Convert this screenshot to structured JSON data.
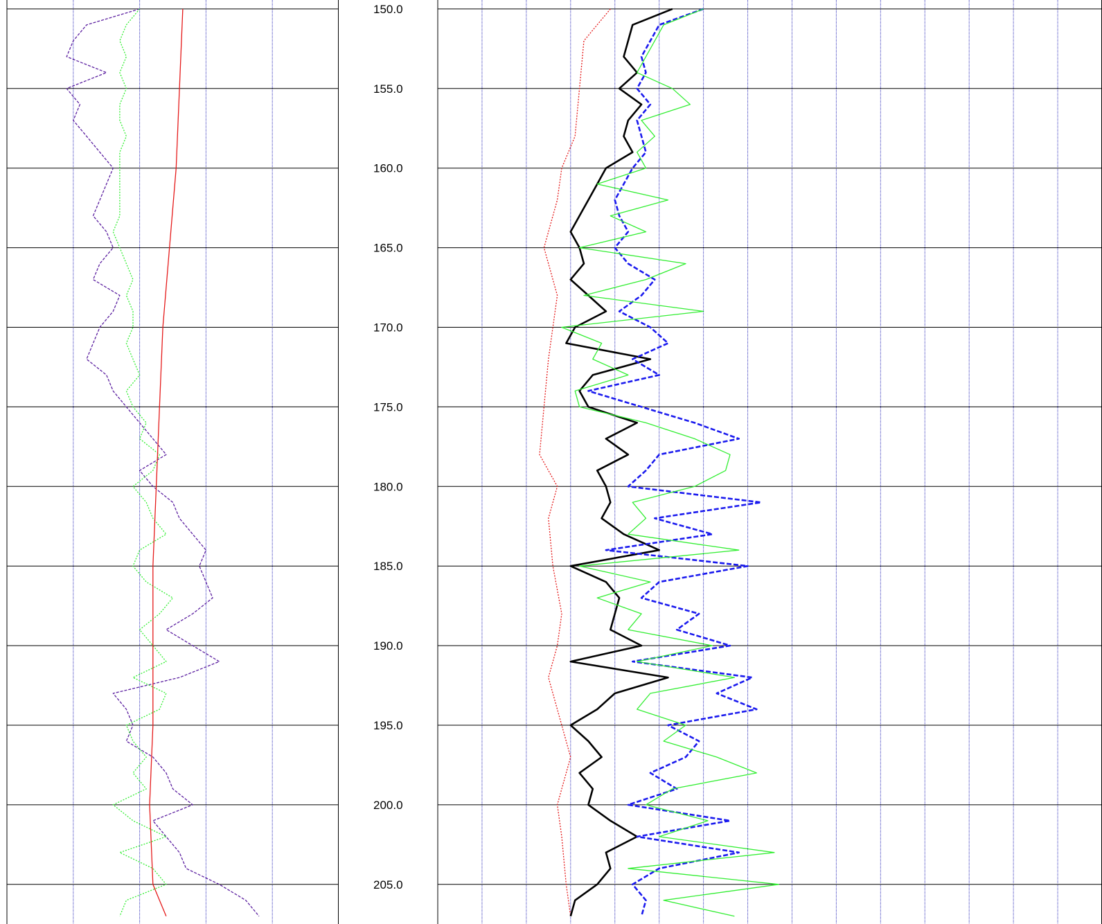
{
  "chart_data": {
    "type": "line",
    "title": "",
    "depth_axis": {
      "range": [
        150,
        207
      ],
      "major_tick_step": 5,
      "orientation": "inverted"
    },
    "depth_tick_labels": [
      "150.0",
      "155.0",
      "160.0",
      "165.0",
      "170.0",
      "175.0",
      "180.0",
      "185.0",
      "190.0",
      "195.0",
      "200.0",
      "205.0"
    ],
    "tracks": [
      {
        "name": "",
        "x_range": [
          0,
          5
        ],
        "minor_gridlines_per_track": 5,
        "series": [
          {
            "name": "",
            "color": "#5b1fa0",
            "style": "dashed",
            "depth": [
              150,
              151,
              152,
              153,
              154,
              155,
              156,
              157,
              158,
              159,
              160,
              161,
              162,
              163,
              164,
              165,
              166,
              167,
              168,
              169,
              170,
              171,
              172,
              173,
              174,
              175,
              176,
              177,
              178,
              179,
              180,
              181,
              182,
              183,
              184,
              185,
              186,
              187,
              188,
              189,
              190,
              191,
              192,
              193,
              194,
              195,
              196,
              197,
              198,
              199,
              200,
              201,
              202,
              203,
              204,
              205,
              206,
              207
            ],
            "values": [
              2.0,
              1.2,
              1.0,
              0.9,
              1.5,
              0.9,
              1.1,
              1.0,
              1.2,
              1.4,
              1.6,
              1.5,
              1.4,
              1.3,
              1.5,
              1.6,
              1.4,
              1.3,
              1.7,
              1.6,
              1.4,
              1.3,
              1.2,
              1.5,
              1.6,
              1.8,
              2.0,
              2.2,
              2.4,
              2.0,
              2.2,
              2.5,
              2.6,
              2.8,
              3.0,
              2.9,
              3.0,
              3.1,
              2.8,
              2.4,
              2.8,
              3.2,
              2.6,
              1.6,
              1.8,
              1.9,
              1.8,
              2.2,
              2.4,
              2.5,
              2.8,
              2.2,
              2.4,
              2.6,
              2.7,
              3.2,
              3.6,
              3.8
            ]
          },
          {
            "name": "",
            "color": "#33ee33",
            "style": "dotted",
            "depth": [
              150,
              151,
              152,
              153,
              154,
              155,
              156,
              157,
              158,
              159,
              160,
              161,
              162,
              163,
              164,
              165,
              166,
              167,
              168,
              169,
              170,
              171,
              172,
              173,
              174,
              175,
              176,
              177,
              178,
              179,
              180,
              181,
              182,
              183,
              184,
              185,
              186,
              187,
              188,
              189,
              190,
              191,
              192,
              193,
              194,
              195,
              196,
              197,
              198,
              199,
              200,
              201,
              202,
              203,
              204,
              205,
              206,
              207
            ],
            "values": [
              2.0,
              1.8,
              1.7,
              1.8,
              1.7,
              1.8,
              1.7,
              1.7,
              1.8,
              1.7,
              1.7,
              1.7,
              1.7,
              1.7,
              1.6,
              1.7,
              1.8,
              1.9,
              1.8,
              1.9,
              1.9,
              1.8,
              1.9,
              2.0,
              1.8,
              1.9,
              2.1,
              2.0,
              2.3,
              2.2,
              1.9,
              2.1,
              2.2,
              2.4,
              2.0,
              1.9,
              2.1,
              2.5,
              2.3,
              2.0,
              2.2,
              2.4,
              1.9,
              2.4,
              2.3,
              1.8,
              1.9,
              2.1,
              1.9,
              2.1,
              1.6,
              1.9,
              2.4,
              1.7,
              2.2,
              2.4,
              1.8,
              1.7
            ]
          },
          {
            "name": "",
            "color": "#e51919",
            "style": "solid",
            "depth": [
              150,
              155,
              160,
              165,
              170,
              175,
              180,
              185,
              190,
              195,
              200,
              205,
              206,
              207
            ],
            "values": [
              2.65,
              2.6,
              2.55,
              2.45,
              2.35,
              2.3,
              2.25,
              2.2,
              2.2,
              2.2,
              2.15,
              2.2,
              2.3,
              2.4
            ]
          }
        ]
      },
      {
        "name": "",
        "x_range": [
          0,
          15
        ],
        "minor_gridlines_per_track": 15,
        "series": [
          {
            "name": "",
            "color": "#e51919",
            "style": "dotted",
            "depth": [
              150,
              152,
              155,
              158,
              160,
              162,
              165,
              168,
              170,
              172,
              175,
              178,
              180,
              182,
              185,
              188,
              190,
              192,
              195,
              197,
              200,
              202,
              205,
              207
            ],
            "values": [
              3.9,
              3.3,
              3.2,
              3.1,
              2.8,
              2.7,
              2.4,
              2.7,
              2.6,
              2.5,
              2.4,
              2.3,
              2.7,
              2.5,
              2.6,
              2.8,
              2.7,
              2.5,
              2.8,
              3.0,
              2.7,
              2.8,
              2.9,
              3.0
            ]
          },
          {
            "name": "",
            "color": "#000000",
            "style": "solid-bold",
            "depth": [
              150,
              151,
              152,
              153,
              154,
              155,
              156,
              157,
              158,
              159,
              160,
              161,
              162,
              163,
              164,
              165,
              166,
              167,
              168,
              169,
              170,
              171,
              172,
              173,
              174,
              175,
              176,
              177,
              178,
              179,
              180,
              181,
              182,
              183,
              184,
              185,
              186,
              187,
              188,
              189,
              190,
              191,
              192,
              193,
              194,
              195,
              196,
              197,
              198,
              199,
              200,
              201,
              202,
              203,
              204,
              205,
              206,
              207
            ],
            "values": [
              5.3,
              4.4,
              4.3,
              4.2,
              4.5,
              4.1,
              4.6,
              4.3,
              4.2,
              4.4,
              3.8,
              3.6,
              3.4,
              3.2,
              3.0,
              3.2,
              3.3,
              3.0,
              3.4,
              3.8,
              3.1,
              2.9,
              4.8,
              3.5,
              3.2,
              3.4,
              4.5,
              3.8,
              4.3,
              3.6,
              3.8,
              3.9,
              3.7,
              4.2,
              5.0,
              3.0,
              3.8,
              4.1,
              4.0,
              3.9,
              4.6,
              3.0,
              5.2,
              4.0,
              3.6,
              3.0,
              3.4,
              3.7,
              3.2,
              3.5,
              3.4,
              3.9,
              4.5,
              3.8,
              3.9,
              3.6,
              3.1,
              3.0
            ]
          },
          {
            "name": "",
            "color": "#1a1aee",
            "style": "dashed-bold",
            "depth": [
              150,
              151,
              152,
              153,
              154,
              155,
              156,
              157,
              158,
              159,
              160,
              161,
              162,
              163,
              164,
              165,
              166,
              167,
              168,
              169,
              170,
              171,
              172,
              173,
              174,
              175,
              176,
              177,
              178,
              179,
              180,
              181,
              182,
              183,
              184,
              185,
              186,
              187,
              188,
              189,
              190,
              191,
              192,
              193,
              194,
              195,
              196,
              197,
              198,
              199,
              200,
              201,
              202,
              203,
              204,
              205,
              206,
              207
            ],
            "values": [
              6.0,
              5.0,
              4.8,
              4.6,
              4.7,
              4.5,
              4.8,
              4.5,
              4.6,
              4.7,
              4.4,
              4.2,
              4.0,
              4.1,
              4.3,
              4.0,
              4.3,
              4.9,
              4.6,
              4.1,
              4.8,
              5.2,
              4.4,
              5.0,
              3.4,
              4.6,
              5.8,
              6.8,
              5.0,
              4.7,
              4.3,
              7.3,
              4.9,
              6.2,
              3.8,
              7.0,
              5.0,
              4.6,
              5.9,
              5.4,
              6.6,
              4.4,
              7.1,
              6.3,
              7.2,
              5.2,
              5.9,
              5.6,
              4.8,
              5.4,
              4.3,
              6.6,
              4.5,
              6.8,
              5.0,
              4.4,
              4.7,
              4.6
            ]
          },
          {
            "name": "",
            "color": "#33ee33",
            "style": "solid",
            "depth": [
              150,
              151,
              152,
              153,
              154,
              155,
              156,
              157,
              158,
              159,
              160,
              161,
              162,
              163,
              164,
              165,
              166,
              167,
              168,
              169,
              170,
              171,
              172,
              173,
              174,
              175,
              176,
              177,
              178,
              179,
              180,
              181,
              182,
              183,
              184,
              185,
              186,
              187,
              188,
              189,
              190,
              191,
              192,
              193,
              194,
              195,
              196,
              197,
              198,
              199,
              200,
              201,
              202,
              203,
              204,
              205,
              206,
              207
            ],
            "values": [
              6.0,
              5.1,
              4.9,
              4.7,
              4.5,
              5.3,
              5.7,
              4.6,
              4.9,
              4.5,
              4.7,
              3.6,
              5.2,
              3.9,
              4.7,
              3.2,
              5.6,
              4.7,
              3.3,
              6.0,
              2.8,
              3.7,
              3.5,
              4.3,
              3.1,
              3.2,
              4.7,
              5.8,
              6.6,
              6.5,
              5.8,
              4.4,
              4.7,
              4.3,
              6.8,
              3.2,
              4.8,
              3.6,
              4.6,
              4.3,
              6.2,
              4.5,
              6.7,
              4.8,
              4.5,
              5.6,
              5.1,
              6.3,
              7.2,
              5.3,
              4.7,
              6.1,
              5.0,
              7.6,
              4.3,
              7.7,
              5.1,
              6.7
            ]
          }
        ]
      }
    ]
  }
}
